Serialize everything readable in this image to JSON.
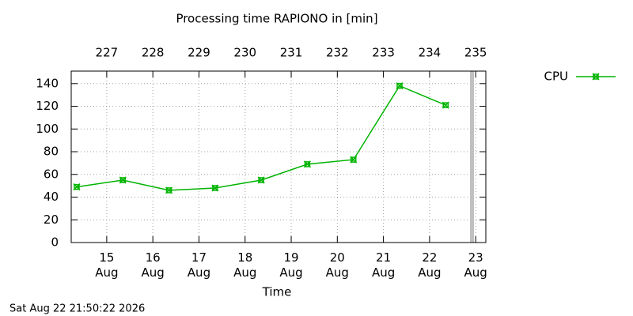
{
  "chart_data": {
    "type": "line",
    "title": "Processing time RAPIONO in [min]",
    "x_label": "Time",
    "timestamp": "Sat Aug 22 21:50:22 2026",
    "x": [
      14.35,
      15.35,
      16.35,
      17.35,
      18.35,
      19.35,
      20.35,
      21.35,
      22.35
    ],
    "series": [
      {
        "name": "CPU",
        "color": "#00b400",
        "values": [
          49,
          55,
          46,
          48,
          55,
          69,
          73,
          138,
          121
        ]
      }
    ],
    "xlim": [
      14.23,
      23.22
    ],
    "xticks": [
      {
        "value": 15,
        "label": "15 Aug"
      },
      {
        "value": 16,
        "label": "16 Aug"
      },
      {
        "value": 17,
        "label": "17 Aug"
      },
      {
        "value": 18,
        "label": "18 Aug"
      },
      {
        "value": 19,
        "label": "19 Aug"
      },
      {
        "value": 20,
        "label": "20 Aug"
      },
      {
        "value": 21,
        "label": "21 Aug"
      },
      {
        "value": 22,
        "label": "22 Aug"
      },
      {
        "value": 23,
        "label": "23 Aug"
      }
    ],
    "x2ticks": [
      {
        "value": 15,
        "label": "227"
      },
      {
        "value": 16,
        "label": "228"
      },
      {
        "value": 17,
        "label": "229"
      },
      {
        "value": 18,
        "label": "230"
      },
      {
        "value": 19,
        "label": "231"
      },
      {
        "value": 20,
        "label": "232"
      },
      {
        "value": 21,
        "label": "233"
      },
      {
        "value": 22,
        "label": "234"
      },
      {
        "value": 23,
        "label": "235"
      }
    ],
    "ylim": [
      0,
      151
    ],
    "yticks": [
      0,
      20,
      40,
      60,
      80,
      100,
      120,
      140
    ],
    "now_x": 22.92,
    "now_color": "#c0c0c0",
    "grid": true,
    "legend": "right"
  }
}
